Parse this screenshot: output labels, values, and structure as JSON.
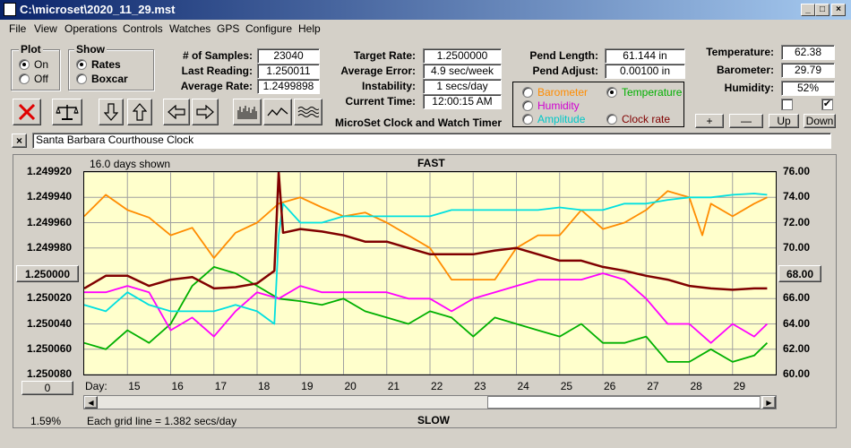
{
  "window": {
    "title": "C:\\microset\\2020_11_29.mst"
  },
  "menu": [
    "File",
    "View",
    "Operations",
    "Controls",
    "Watches",
    "GPS",
    "Configure",
    "Help"
  ],
  "title_buttons": {
    "minimize": "_",
    "maximize": "□",
    "close": "×"
  },
  "plot_group": {
    "title": "Plot",
    "on": "On",
    "off": "Off",
    "selected": "On"
  },
  "show_group": {
    "title": "Show",
    "rates": "Rates",
    "boxcar": "Boxcar",
    "selected": "Rates"
  },
  "stats": {
    "samples_label": "# of Samples:",
    "samples": "23040",
    "last_label": "Last Reading:",
    "last": "1.250011",
    "avg_label": "Average Rate:",
    "avg": "1.2499898"
  },
  "rates": {
    "target_label": "Target Rate:",
    "target": "1.2500000",
    "error_label": "Average Error:",
    "error": "4.9 sec/week",
    "instability_label": "Instability:",
    "instability": "1 secs/day",
    "time_label": "Current Time:",
    "time": "12:00:15 AM"
  },
  "pend": {
    "length_label": "Pend Length:",
    "length": "61.144 in",
    "adjust_label": "Pend Adjust:",
    "adjust": "0.00100 in"
  },
  "env": {
    "temp_label": "Temperature:",
    "temp": "62.38",
    "baro_label": "Barometer:",
    "baro": "29.79",
    "hum_label": "Humidity:",
    "hum": "52%"
  },
  "series_select": {
    "barometer": "Barometer",
    "temperature": "Temperature",
    "humidity": "Humidity",
    "amplitude": "Amplitude",
    "clock_rate": "Clock rate",
    "selected": "Temperature"
  },
  "adjust_buttons": {
    "plus": "+",
    "minus": "—",
    "up": "Up",
    "down": "Down"
  },
  "app_caption": "MicroSet Clock and Watch Timer",
  "clock_name": "Santa Barbara Courthouse Clock",
  "close_x": "×",
  "plot": {
    "days_shown": "16.0 days shown",
    "fast": "FAST",
    "slow": "SLOW",
    "left_readout": "1.250000",
    "right_readout": "68.00",
    "bottom_button": "0",
    "day_label": "Day:",
    "grid_note": "Each grid line = 1.382 secs/day",
    "percent": "1.59%"
  },
  "colors": {
    "barometer": "#ff8c00",
    "temperature": "#00b000",
    "humidity": "#ff00ff",
    "amplitude": "#00e0e0",
    "clock_rate": "#800000",
    "plot_bg": "#ffffcc",
    "grid": "#a0a0a0"
  },
  "chart_data": {
    "type": "line",
    "title": "FAST",
    "xlabel": "Day:",
    "x_ticks": [
      15,
      16,
      17,
      18,
      19,
      20,
      21,
      22,
      23,
      24,
      25,
      26,
      27,
      28,
      29
    ],
    "x_range": [
      14.0,
      30.0
    ],
    "y_left_ticks": [
      "1.249920",
      "1.249940",
      "1.249960",
      "1.249980",
      "1.250000",
      "1.250020",
      "1.250040",
      "1.250060",
      "1.250080"
    ],
    "y_left_range": [
      1.24992,
      1.25008
    ],
    "y_left_inverted": true,
    "y_right_ticks": [
      "76.00",
      "74.00",
      "72.00",
      "70.00",
      "68.00",
      "66.00",
      "64.00",
      "62.00",
      "60.00"
    ],
    "y_right_range": [
      60,
      76
    ],
    "grid": true,
    "series": [
      {
        "name": "Barometer",
        "color": "#ff8c00",
        "axis": "right",
        "x": [
          14.0,
          14.5,
          15.0,
          15.5,
          16.0,
          16.5,
          17.0,
          17.5,
          18.0,
          18.5,
          19.0,
          19.5,
          20.0,
          20.5,
          21.0,
          21.5,
          22.0,
          22.5,
          23.0,
          23.5,
          24.0,
          24.5,
          25.0,
          25.5,
          26.0,
          26.5,
          27.0,
          27.5,
          28.0,
          28.3,
          28.5,
          29.0,
          29.5,
          29.8
        ],
        "y": [
          72.5,
          74.2,
          73.0,
          72.4,
          71.0,
          71.6,
          69.2,
          71.2,
          72.0,
          73.5,
          74.0,
          73.2,
          72.5,
          72.8,
          72.0,
          71.0,
          70.0,
          67.5,
          67.5,
          67.5,
          70.0,
          71.0,
          71.0,
          73.0,
          71.5,
          72.0,
          73.0,
          74.5,
          74.0,
          71.0,
          73.5,
          72.5,
          73.5,
          74.0
        ]
      },
      {
        "name": "Temperature",
        "color": "#00b000",
        "axis": "right",
        "x": [
          14.0,
          14.5,
          15.0,
          15.5,
          16.0,
          16.5,
          17.0,
          17.5,
          18.0,
          18.5,
          19.0,
          19.5,
          20.0,
          20.5,
          21.0,
          21.5,
          22.0,
          22.5,
          23.0,
          23.5,
          24.0,
          24.5,
          25.0,
          25.5,
          26.0,
          26.5,
          27.0,
          27.5,
          28.0,
          28.5,
          29.0,
          29.5,
          29.8
        ],
        "y": [
          62.5,
          62.0,
          63.5,
          62.5,
          64.0,
          67.0,
          68.5,
          68.0,
          67.0,
          66.0,
          65.8,
          65.5,
          66.0,
          65.0,
          64.5,
          64.0,
          65.0,
          64.5,
          63.0,
          64.5,
          64.0,
          63.5,
          63.0,
          64.0,
          62.5,
          62.5,
          63.0,
          61.0,
          61.0,
          62.0,
          61.0,
          61.5,
          62.5
        ]
      },
      {
        "name": "Humidity",
        "color": "#ff00ff",
        "axis": "right",
        "x": [
          14.0,
          14.5,
          15.0,
          15.5,
          16.0,
          16.5,
          17.0,
          17.5,
          18.0,
          18.5,
          19.0,
          19.5,
          20.0,
          20.5,
          21.0,
          21.5,
          22.0,
          22.5,
          23.0,
          23.5,
          24.0,
          24.5,
          25.0,
          25.5,
          26.0,
          26.5,
          27.0,
          27.5,
          28.0,
          28.5,
          29.0,
          29.5,
          29.8
        ],
        "y": [
          66.5,
          66.5,
          67.0,
          66.5,
          63.5,
          64.5,
          63.0,
          65.0,
          66.5,
          66.0,
          67.0,
          66.5,
          66.5,
          66.5,
          66.5,
          66.0,
          66.0,
          65.0,
          66.0,
          66.5,
          67.0,
          67.5,
          67.5,
          67.5,
          68.0,
          67.5,
          66.0,
          64.0,
          64.0,
          62.5,
          64.0,
          63.0,
          64.0
        ]
      },
      {
        "name": "Amplitude",
        "color": "#00e0e0",
        "axis": "right",
        "x": [
          14.0,
          14.5,
          15.0,
          15.5,
          16.0,
          16.5,
          17.0,
          17.5,
          18.0,
          18.4,
          18.5,
          18.6,
          19.0,
          19.5,
          20.0,
          20.5,
          21.0,
          21.5,
          22.0,
          22.5,
          23.0,
          23.5,
          24.0,
          24.5,
          25.0,
          25.5,
          26.0,
          26.5,
          27.0,
          27.5,
          28.0,
          28.5,
          29.0,
          29.5,
          29.8
        ],
        "y": [
          65.5,
          65.0,
          66.5,
          65.5,
          65.0,
          65.0,
          65.0,
          65.5,
          65.0,
          64.0,
          71.0,
          73.5,
          72.0,
          72.0,
          72.5,
          72.5,
          72.5,
          72.5,
          72.5,
          73.0,
          73.0,
          73.0,
          73.0,
          73.0,
          73.2,
          73.0,
          73.0,
          73.5,
          73.5,
          73.8,
          74.0,
          74.0,
          74.2,
          74.3,
          74.2
        ]
      },
      {
        "name": "Clock rate",
        "color": "#800000",
        "axis": "left",
        "x": [
          14.0,
          14.5,
          15.0,
          15.5,
          16.0,
          16.5,
          17.0,
          17.5,
          18.0,
          18.4,
          18.5,
          18.6,
          19.0,
          19.5,
          20.0,
          20.5,
          21.0,
          21.5,
          22.0,
          22.5,
          23.0,
          23.5,
          24.0,
          24.5,
          25.0,
          25.5,
          26.0,
          26.5,
          27.0,
          27.5,
          28.0,
          28.5,
          29.0,
          29.5,
          29.8
        ],
        "y": [
          1.250012,
          1.250002,
          1.250002,
          1.25001,
          1.250005,
          1.250003,
          1.250012,
          1.250011,
          1.250008,
          1.249998,
          1.24992,
          1.249968,
          1.249965,
          1.249967,
          1.24997,
          1.249975,
          1.249975,
          1.24998,
          1.249985,
          1.249985,
          1.249985,
          1.249982,
          1.24998,
          1.249985,
          1.24999,
          1.24999,
          1.249995,
          1.249998,
          1.250002,
          1.250005,
          1.25001,
          1.250012,
          1.250013,
          1.250012,
          1.250012
        ]
      }
    ]
  }
}
